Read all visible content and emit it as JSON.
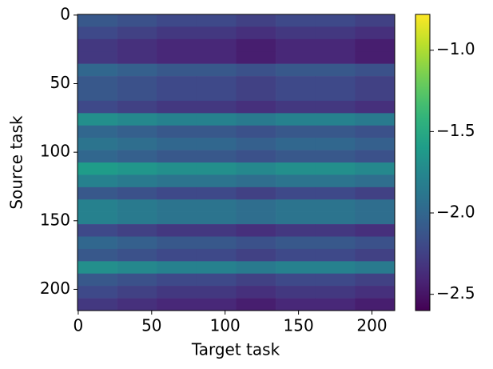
{
  "chart_data": {
    "type": "heatmap",
    "xlabel": "Target task",
    "ylabel": "Source task",
    "xlim": [
      -0.5,
      215.5
    ],
    "ylim": [
      -0.5,
      215.5
    ],
    "y_inverted": true,
    "xticks": [
      0,
      50,
      100,
      150,
      200
    ],
    "yticks": [
      0,
      50,
      100,
      150,
      200
    ],
    "xbins": [
      -0.5,
      26.5,
      53.5,
      80.5,
      107.5,
      134.5,
      161.5,
      188.5,
      215.5
    ],
    "ybins": [
      -0.5,
      8.5,
      17.5,
      26.5,
      35.5,
      44.5,
      53.5,
      62.5,
      71.5,
      80.5,
      89.5,
      98.5,
      107.5,
      116.5,
      125.5,
      134.5,
      143.5,
      152.5,
      161.5,
      170.5,
      179.5,
      188.5,
      197.5,
      206.5,
      215.5
    ],
    "values": [
      [
        -2.1,
        -2.15,
        -2.2,
        -2.2,
        -2.25,
        -2.2,
        -2.2,
        -2.25
      ],
      [
        -2.2,
        -2.25,
        -2.3,
        -2.3,
        -2.35,
        -2.3,
        -2.3,
        -2.35
      ],
      [
        -2.3,
        -2.35,
        -2.4,
        -2.4,
        -2.45,
        -2.4,
        -2.4,
        -2.45
      ],
      [
        -2.3,
        -2.35,
        -2.4,
        -2.4,
        -2.45,
        -2.4,
        -2.4,
        -2.45
      ],
      [
        -2.0,
        -2.05,
        -2.1,
        -2.1,
        -2.15,
        -2.1,
        -2.1,
        -2.15
      ],
      [
        -2.1,
        -2.15,
        -2.2,
        -2.2,
        -2.25,
        -2.2,
        -2.2,
        -2.25
      ],
      [
        -2.1,
        -2.15,
        -2.2,
        -2.2,
        -2.25,
        -2.2,
        -2.2,
        -2.25
      ],
      [
        -2.2,
        -2.25,
        -2.3,
        -2.3,
        -2.35,
        -2.3,
        -2.3,
        -2.35
      ],
      [
        -1.7,
        -1.75,
        -1.8,
        -1.8,
        -1.85,
        -1.8,
        -1.8,
        -1.85
      ],
      [
        -2.0,
        -2.05,
        -2.1,
        -2.1,
        -2.15,
        -2.1,
        -2.1,
        -2.15
      ],
      [
        -1.9,
        -1.95,
        -2.0,
        -2.0,
        -2.05,
        -2.0,
        -2.0,
        -2.05
      ],
      [
        -2.0,
        -2.05,
        -2.1,
        -2.1,
        -2.15,
        -2.1,
        -2.1,
        -2.15
      ],
      [
        -1.6,
        -1.65,
        -1.7,
        -1.7,
        -1.75,
        -1.7,
        -1.7,
        -1.75
      ],
      [
        -1.8,
        -1.85,
        -1.9,
        -1.9,
        -1.95,
        -1.9,
        -1.9,
        -1.95
      ],
      [
        -2.1,
        -2.15,
        -2.2,
        -2.2,
        -2.25,
        -2.2,
        -2.2,
        -2.25
      ],
      [
        -1.8,
        -1.85,
        -1.9,
        -1.9,
        -1.95,
        -1.9,
        -1.9,
        -1.95
      ],
      [
        -1.8,
        -1.85,
        -1.9,
        -1.9,
        -1.95,
        -1.9,
        -1.9,
        -1.95
      ],
      [
        -2.2,
        -2.25,
        -2.3,
        -2.3,
        -2.35,
        -2.3,
        -2.3,
        -2.35
      ],
      [
        -2.0,
        -2.05,
        -2.1,
        -2.1,
        -2.15,
        -2.1,
        -2.1,
        -2.15
      ],
      [
        -2.1,
        -2.15,
        -2.2,
        -2.2,
        -2.25,
        -2.2,
        -2.2,
        -2.25
      ],
      [
        -1.7,
        -1.75,
        -1.8,
        -1.8,
        -1.85,
        -1.8,
        -1.8,
        -1.85
      ],
      [
        -2.1,
        -2.15,
        -2.2,
        -2.2,
        -2.25,
        -2.2,
        -2.2,
        -2.25
      ],
      [
        -2.2,
        -2.25,
        -2.3,
        -2.3,
        -2.35,
        -2.3,
        -2.3,
        -2.35
      ],
      [
        -2.3,
        -2.35,
        -2.4,
        -2.4,
        -2.45,
        -2.4,
        -2.4,
        -2.45
      ]
    ],
    "colormap": "viridis",
    "clim": [
      -2.6,
      -0.78
    ],
    "cticks": [
      {
        "value": -1.0,
        "label": "−1.0"
      },
      {
        "value": -1.5,
        "label": "−1.5"
      },
      {
        "value": -2.0,
        "label": "−2.0"
      },
      {
        "value": -2.5,
        "label": "−2.5"
      }
    ]
  }
}
